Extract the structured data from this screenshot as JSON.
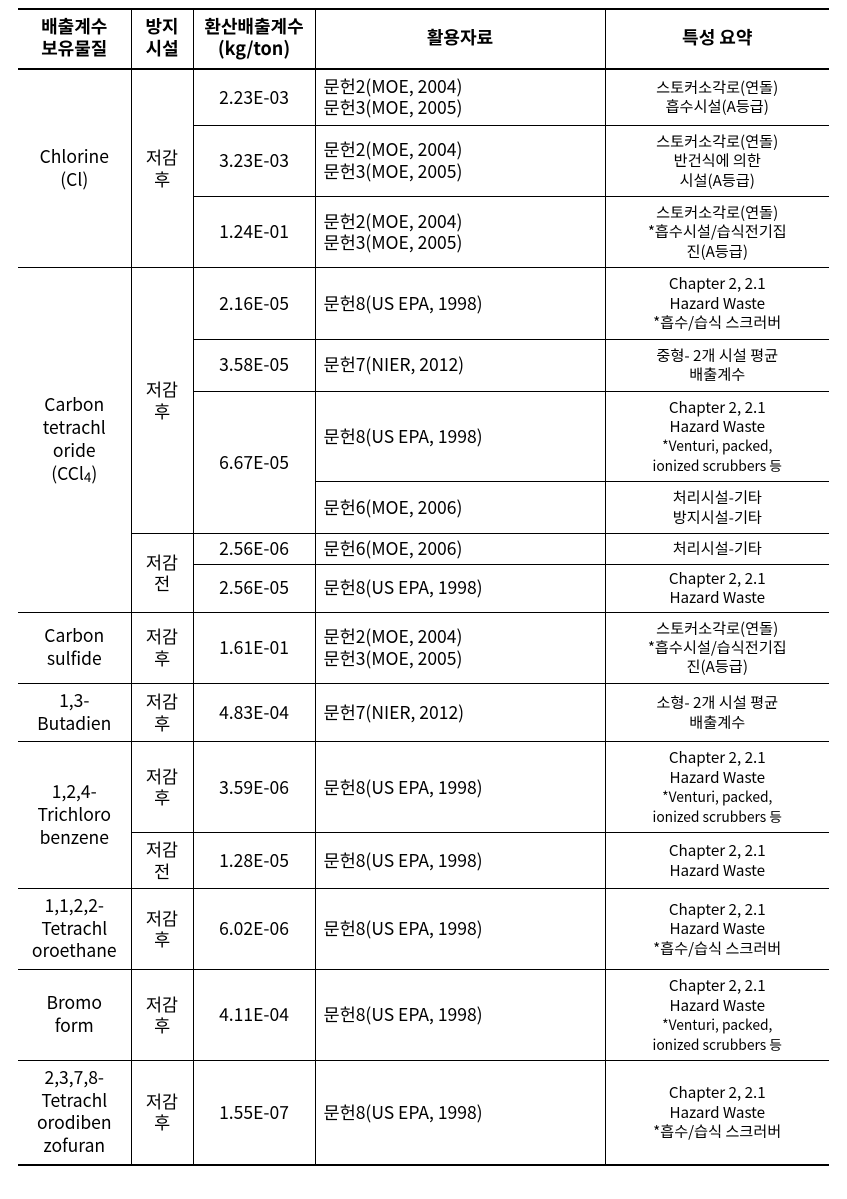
{
  "headers": {
    "substance": "배출계수\n보유물질",
    "facility": "방지\n시설",
    "factor": "환산배출계수\n(kg/ton)",
    "source": "활용자료",
    "summary": "특성 요약"
  },
  "label": {
    "post": "저감\n후",
    "pre": "저감\n전"
  },
  "src": {
    "moe0405": "문헌2(MOE, 2004)\n문헌3(MOE, 2005)",
    "epa98": "문헌8(US EPA, 1998)",
    "nier12": "문헌7(NIER, 2012)",
    "moe06": "문헌6(MOE, 2006)"
  },
  "summary": {
    "cl_a": "스토커소각로(연돌)\n흡수시설(A등급)",
    "cl_b": "스토커소각로(연돌)\n반건식에 의한\n시설(A등급)",
    "cl_c": "스토커소각로(연돌)\n*흡수시설/습식전기집\n진(A등급)",
    "hw_scrub": "Chapter 2, 2.1\nHazard Waste\n*흡수/습식 스크러버",
    "mid_avg": "중형- 2개 시설 평균\n배출계수",
    "hw_vent": "Chapter 2, 2.1\nHazard Waste",
    "hw_vent_note": "*Venturi, packed,\nionized scrubbers 등",
    "etc_both": "처리시설-기타\n방지시설-기타",
    "etc_one": "처리시설-기타",
    "hw_plain": "Chapter 2, 2.1\nHazard Waste",
    "sml_avg": "소형- 2개 시설 평균\n배출계수"
  },
  "substance": {
    "cl": "Chlorine\n(Cl)",
    "ccl4_a": "Carbon\ntetrachl\noride\n(CCl",
    "ccl4_b": ")",
    "cs": "Carbon\nsulfide",
    "butadien": "1,3-\nButadien",
    "tcb": "1,2,4-\nTrichloro\nbenzene",
    "teca": "1,1,2,2-\nTetrachl\noroethane",
    "bromo": "Bromo\nform",
    "tcdbf": "2,3,7,8-\nTetrachl\norodiben\nzofuran"
  },
  "factor": {
    "cl1": "2.23E-03",
    "cl2": "3.23E-03",
    "cl3": "1.24E-01",
    "cc1": "2.16E-05",
    "cc2": "3.58E-05",
    "cc3": "6.67E-05",
    "cc4": "2.56E-06",
    "cc5": "2.56E-05",
    "cs1": "1.61E-01",
    "bd1": "4.83E-04",
    "tcb1": "3.59E-06",
    "tcb2": "1.28E-05",
    "tec1": "6.02E-06",
    "br1": "4.11E-04",
    "tcdf1": "1.55E-07"
  }
}
